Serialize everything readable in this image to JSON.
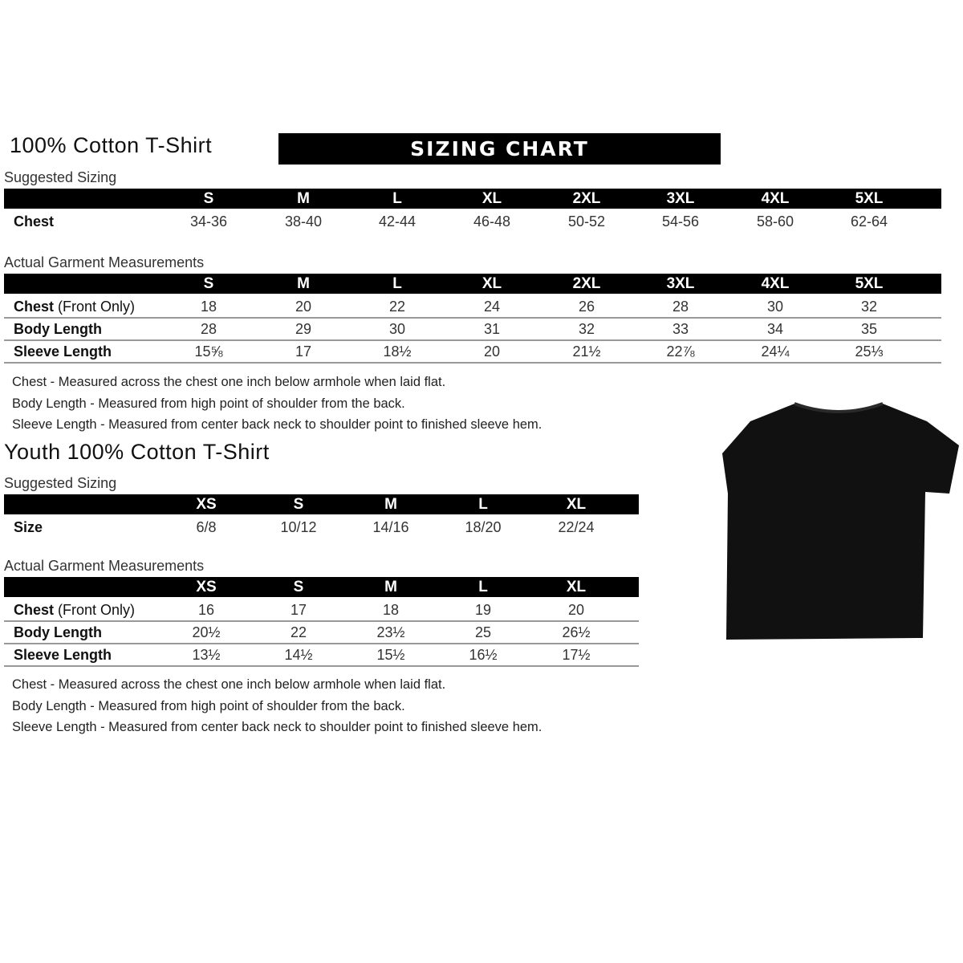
{
  "adult": {
    "title": "100% Cotton T-Shirt",
    "banner": "SIZING CHART",
    "suggested_label": "Suggested Sizing",
    "sizes": [
      "S",
      "M",
      "L",
      "XL",
      "2XL",
      "3XL",
      "4XL",
      "5XL"
    ],
    "suggested_rows": [
      {
        "label": "Chest",
        "values": [
          "34-36",
          "38-40",
          "42-44",
          "46-48",
          "50-52",
          "54-56",
          "58-60",
          "62-64"
        ]
      }
    ],
    "actual_label": "Actual Garment Measurements",
    "actual_rows": [
      {
        "label": "Chest",
        "label_suffix": " (Front Only)",
        "values": [
          "18",
          "20",
          "22",
          "24",
          "26",
          "28",
          "30",
          "32"
        ]
      },
      {
        "label": "Body Length",
        "label_suffix": "",
        "values": [
          "28",
          "29",
          "30",
          "31",
          "32",
          "33",
          "34",
          "35"
        ]
      },
      {
        "label": "Sleeve Length",
        "label_suffix": "",
        "values": [
          "15⅝",
          "17",
          "18½",
          "20",
          "21½",
          "22⅞",
          "24¼",
          "25⅓"
        ]
      }
    ],
    "notes": [
      "Chest - Measured across the chest one inch below armhole when laid flat.",
      "Body Length - Measured from high point of shoulder from the back.",
      "Sleeve Length - Measured from center back neck to shoulder point to finished sleeve hem."
    ]
  },
  "youth": {
    "title": "Youth 100% Cotton T-Shirt",
    "suggested_label": "Suggested Sizing",
    "sizes": [
      "XS",
      "S",
      "M",
      "L",
      "XL"
    ],
    "suggested_rows": [
      {
        "label": "Size",
        "values": [
          "6/8",
          "10/12",
          "14/16",
          "18/20",
          "22/24"
        ]
      }
    ],
    "actual_label": "Actual Garment Measurements",
    "actual_rows": [
      {
        "label": "Chest",
        "label_suffix": " (Front Only)",
        "values": [
          "16",
          "17",
          "18",
          "19",
          "20"
        ]
      },
      {
        "label": "Body Length",
        "label_suffix": "",
        "values": [
          "20½",
          "22",
          "23½",
          "25",
          "26½"
        ]
      },
      {
        "label": "Sleeve Length",
        "label_suffix": "",
        "values": [
          "13½",
          "14½",
          "15½",
          "16½",
          "17½"
        ]
      }
    ],
    "notes": [
      "Chest - Measured across the chest one inch below armhole when laid flat.",
      "Body Length - Measured from high point of shoulder from the back.",
      "Sleeve Length - Measured from center back neck to shoulder point to finished sleeve hem."
    ]
  },
  "image": {
    "icon": "tshirt-icon",
    "color": "#111111"
  }
}
